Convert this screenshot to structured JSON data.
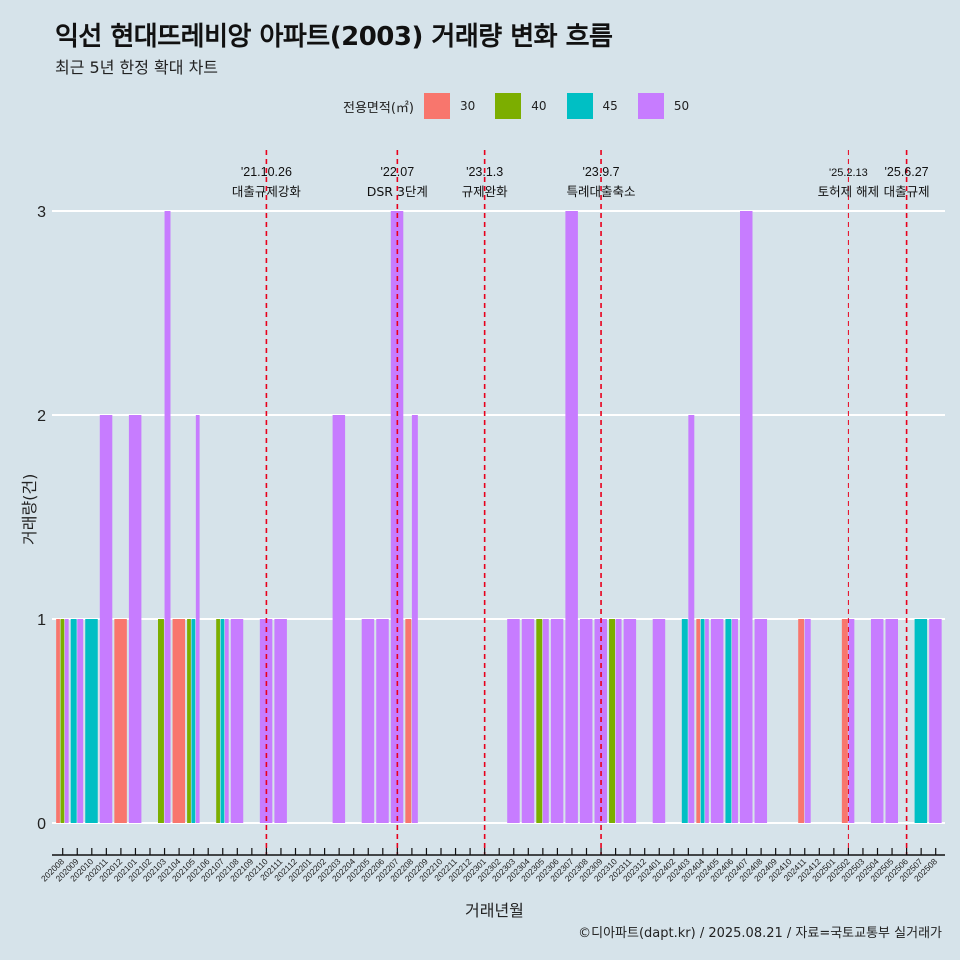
{
  "title": "익선 현대뜨레비앙 아파트(2003) 거래량 변화 흐름",
  "subtitle": "최근 5년 한정 확대 차트",
  "caption": "©디아파트(dapt.kr) / 2025.08.21 / 자료=국토교통부 실거래가",
  "legend": {
    "title": "전용면적(㎡)",
    "items": [
      {
        "label": "30",
        "color": "#F8766D"
      },
      {
        "label": "40",
        "color": "#7CAE00"
      },
      {
        "label": "45",
        "color": "#00BFC4"
      },
      {
        "label": "50",
        "color": "#C77CFF"
      }
    ]
  },
  "chart_data": {
    "type": "bar",
    "position": "dodge",
    "title": "익선 현대뜨레비앙 아파트(2003) 거래량 변화 흐름",
    "xlabel": "거래년월",
    "ylabel": "거래량(건)",
    "ylim": [
      0,
      3
    ],
    "yticks": [
      0,
      1,
      2,
      3
    ],
    "grid": true,
    "legend_position": "top",
    "categories": [
      "202008",
      "202009",
      "202010",
      "202011",
      "202012",
      "202101",
      "202102",
      "202103",
      "202104",
      "202105",
      "202106",
      "202107",
      "202108",
      "202109",
      "202110",
      "202111",
      "202112",
      "202201",
      "202202",
      "202203",
      "202204",
      "202205",
      "202206",
      "202207",
      "202208",
      "202209",
      "202210",
      "202211",
      "202212",
      "202301",
      "202302",
      "202303",
      "202304",
      "202305",
      "202306",
      "202307",
      "202308",
      "202309",
      "202310",
      "202311",
      "202312",
      "202401",
      "202402",
      "202403",
      "202404",
      "202405",
      "202406",
      "202407",
      "202408",
      "202409",
      "202410",
      "202411",
      "202412",
      "202501",
      "202502",
      "202503",
      "202504",
      "202505",
      "202506",
      "202507",
      "202508"
    ],
    "series_keys": [
      "30",
      "40",
      "45",
      "50"
    ],
    "data": {
      "202008": {
        "30": 1,
        "40": 1,
        "50": 1
      },
      "202009": {
        "45": 1,
        "50": 1
      },
      "202010": {
        "45": 1
      },
      "202011": {
        "50": 2
      },
      "202012": {
        "30": 1
      },
      "202101": {
        "50": 2
      },
      "202103": {
        "40": 1,
        "50": 3
      },
      "202104": {
        "30": 1
      },
      "202105": {
        "40": 1,
        "45": 1,
        "50": 2
      },
      "202107": {
        "40": 1,
        "45": 1,
        "50": 1
      },
      "202108": {
        "50": 1
      },
      "202110": {
        "50": 1
      },
      "202111": {
        "50": 1
      },
      "202203": {
        "50": 2
      },
      "202205": {
        "50": 1
      },
      "202206": {
        "50": 1
      },
      "202207": {
        "50": 3
      },
      "202208": {
        "30": 1,
        "50": 2
      },
      "202303": {
        "50": 1
      },
      "202304": {
        "50": 1
      },
      "202305": {
        "40": 1,
        "50": 1
      },
      "202306": {
        "50": 1
      },
      "202307": {
        "50": 3
      },
      "202308": {
        "50": 1
      },
      "202309": {
        "50": 1
      },
      "202310": {
        "40": 1,
        "50": 1
      },
      "202311": {
        "50": 1
      },
      "202401": {
        "50": 1
      },
      "202403": {
        "45": 1,
        "50": 2
      },
      "202404": {
        "30": 1,
        "45": 1,
        "50": 1
      },
      "202405": {
        "50": 1
      },
      "202406": {
        "45": 1,
        "50": 1
      },
      "202407": {
        "50": 3
      },
      "202408": {
        "50": 1
      },
      "202411": {
        "30": 1,
        "50": 1
      },
      "202502": {
        "30": 1,
        "50": 1
      },
      "202504": {
        "50": 1
      },
      "202505": {
        "50": 1
      },
      "202507": {
        "45": 1
      },
      "202508": {
        "50": 1
      }
    },
    "annotations": [
      {
        "month": "202110",
        "date": "'21.10.26",
        "text": "대출규제강화",
        "color": "#e8001c"
      },
      {
        "month": "202207",
        "date": "'22.07",
        "text": "DSR 3단계",
        "color": "#e8001c"
      },
      {
        "month": "202301",
        "date": "'23.1.3",
        "text": "규제완화",
        "color": "#e8001c"
      },
      {
        "month": "202309",
        "date": "'23.9.7",
        "text": "특례대출축소",
        "color": "#e8001c"
      },
      {
        "month": "202502",
        "date": "'25.2.13",
        "text": "토허제 해제",
        "color": "#e8001c"
      },
      {
        "month": "202506",
        "date": "'25.6.27",
        "text": "대출규제",
        "color": "#e8001c"
      }
    ]
  }
}
